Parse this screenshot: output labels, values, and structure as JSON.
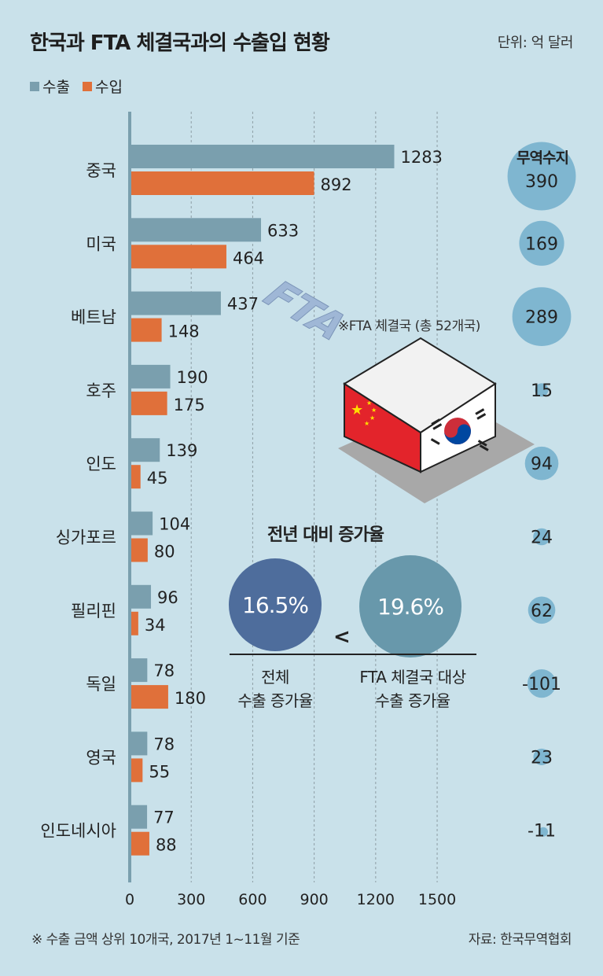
{
  "title": "한국과 FTA 체결국과의 수출입 현황",
  "unit": "단위: 억 달러",
  "legend": {
    "export": "수출",
    "import": "수입"
  },
  "colors": {
    "export": "#7a9fae",
    "import": "#e0703a",
    "balance": "#7fb6d0",
    "total_circle": "#4e6d9c",
    "fta_circle": "#6898ab",
    "background": "#c9e1ea"
  },
  "chart_data": {
    "type": "bar",
    "orientation": "horizontal",
    "categories": [
      "중국",
      "미국",
      "베트남",
      "호주",
      "인도",
      "싱가포르",
      "필리핀",
      "독일",
      "영국",
      "인도네시아"
    ],
    "series": [
      {
        "name": "수출",
        "values": [
          1283,
          633,
          437,
          190,
          139,
          104,
          96,
          78,
          78,
          77
        ]
      },
      {
        "name": "수입",
        "values": [
          892,
          464,
          148,
          175,
          45,
          80,
          34,
          180,
          55,
          88
        ]
      }
    ],
    "xticks": [
      0,
      300,
      600,
      900,
      1200,
      1500
    ],
    "xlim": [
      0,
      1600
    ],
    "balance_title": "무역수지",
    "balance": [
      390,
      169,
      289,
      15,
      94,
      24,
      62,
      -101,
      23,
      -11
    ]
  },
  "fta_note": "※FTA 체결국 (총 52개국)",
  "growth": {
    "title": "전년 대비 증가율",
    "total_value": "16.5%",
    "fta_value": "19.6%",
    "comparator": "<",
    "total_caption_1": "전체",
    "total_caption_2": "수출 증가율",
    "fta_caption_1": "FTA 체결국 대상",
    "fta_caption_2": "수출 증가율"
  },
  "footnote": "※ 수출 금액 상위 10개국, 2017년 1~11월 기준",
  "source": "자료: 한국무역협회",
  "illustration": {
    "box_text": "FTA",
    "left_face": "china-flag",
    "right_face": "korea-flag"
  }
}
